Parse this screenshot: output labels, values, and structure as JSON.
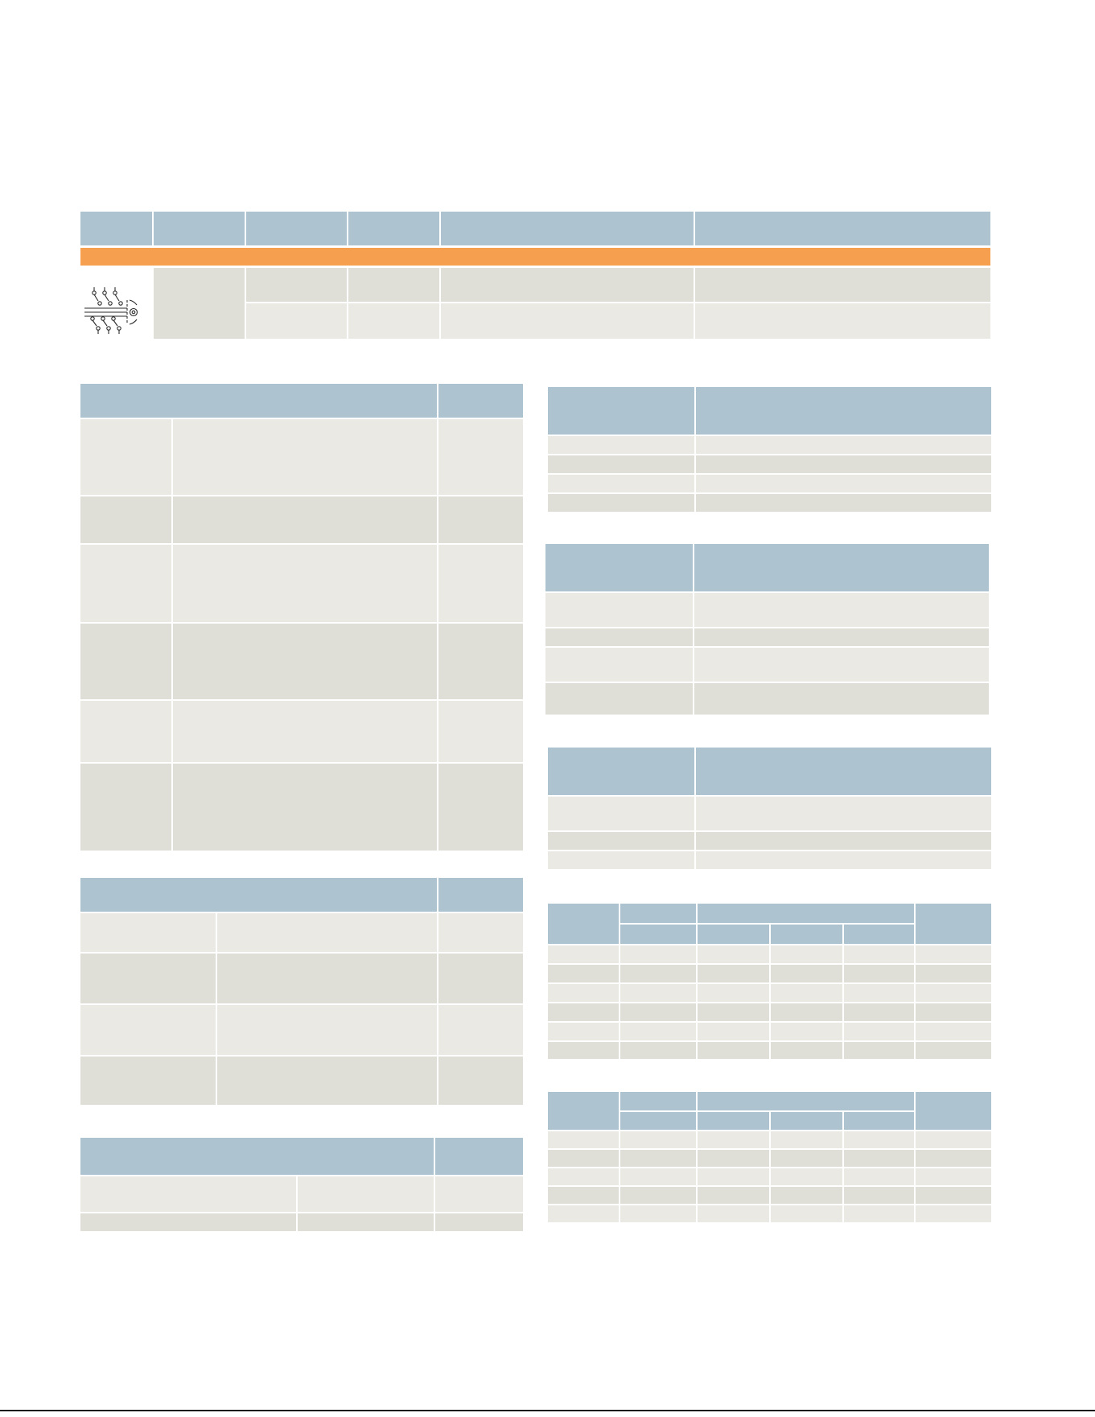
{
  "page": {
    "title": "",
    "subtitle": ""
  },
  "ordering_table": {
    "columns": [
      "",
      "",
      "",
      "",
      "",
      ""
    ],
    "section_label": "",
    "rows": [
      [
        "",
        "",
        "",
        "",
        ""
      ],
      [
        "",
        "",
        "",
        "",
        ""
      ]
    ]
  },
  "icon": {
    "name": "switch-schematic-icon"
  },
  "colors": {
    "header": "#adc3cf",
    "row_light": "#eae9e3",
    "row_dark": "#dfdfd7",
    "section_bar": "#f6a04f"
  },
  "footer": {
    "folio": ""
  }
}
